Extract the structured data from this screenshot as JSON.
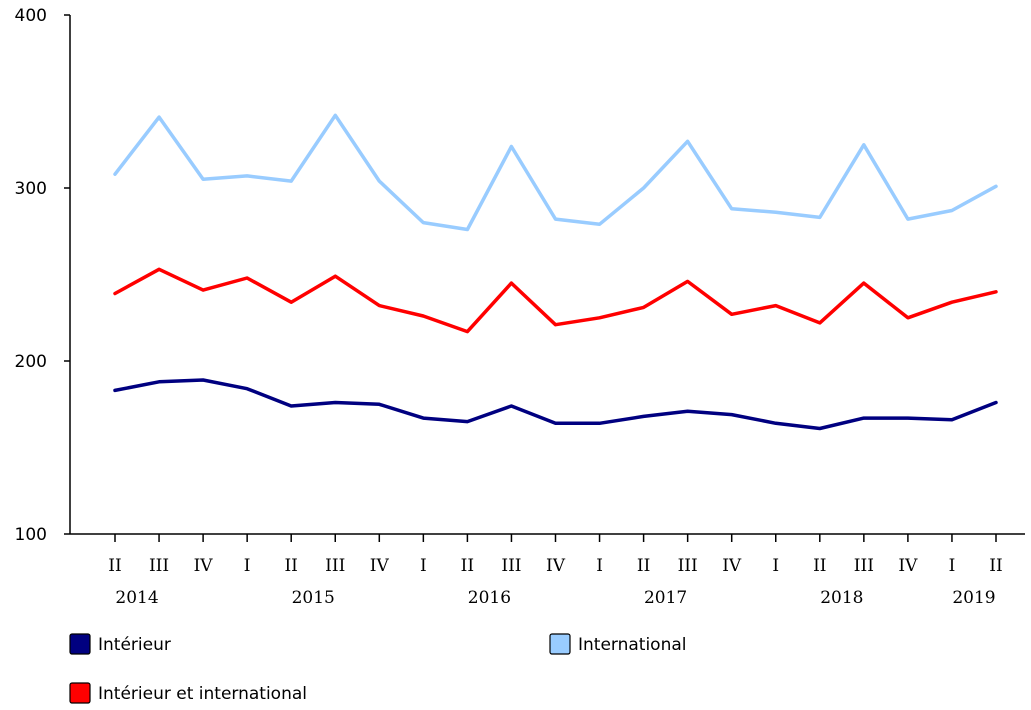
{
  "chart_data": {
    "type": "line",
    "title": "",
    "xlabel": "",
    "ylabel": "",
    "ylim": [
      100,
      400
    ],
    "yticks": [
      100,
      200,
      300,
      400
    ],
    "grid": false,
    "legend_placement": "bottom",
    "categories": [
      "II",
      "III",
      "IV",
      "I",
      "II",
      "III",
      "IV",
      "I",
      "II",
      "III",
      "IV",
      "I",
      "II",
      "III",
      "IV",
      "I",
      "II",
      "III",
      "IV",
      "I",
      "II"
    ],
    "year_labels": [
      {
        "label": "2014",
        "index": 0.5
      },
      {
        "label": "2015",
        "index": 4.5
      },
      {
        "label": "2016",
        "index": 8.5
      },
      {
        "label": "2017",
        "index": 12.5
      },
      {
        "label": "2018",
        "index": 16.5
      },
      {
        "label": "2019",
        "index": 19.5
      }
    ],
    "series": [
      {
        "name": "Intérieur",
        "color": "#000080",
        "values": [
          183,
          188,
          189,
          184,
          174,
          176,
          175,
          167,
          165,
          174,
          164,
          164,
          168,
          171,
          169,
          164,
          161,
          167,
          167,
          166,
          176
        ]
      },
      {
        "name": "International",
        "color": "#99ccff",
        "values": [
          308,
          341,
          305,
          307,
          304,
          342,
          304,
          280,
          276,
          324,
          282,
          279,
          300,
          327,
          288,
          286,
          283,
          325,
          282,
          287,
          301
        ]
      },
      {
        "name": "Intérieur et international",
        "color": "#ff0000",
        "values": [
          239,
          253,
          241,
          248,
          234,
          249,
          232,
          226,
          217,
          245,
          221,
          225,
          231,
          246,
          227,
          232,
          222,
          245,
          225,
          234,
          240
        ]
      }
    ]
  }
}
